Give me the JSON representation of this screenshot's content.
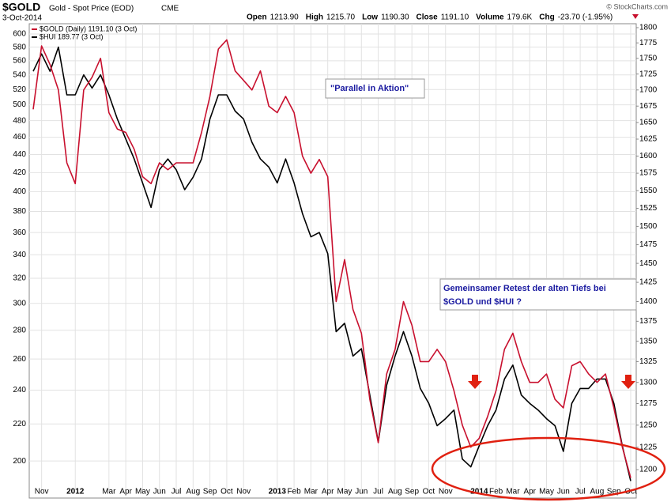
{
  "chart_data": {
    "type": "line",
    "symbol": "$GOLD",
    "title": "Gold - Spot Price (EOD)",
    "exchange": "CME",
    "date": "3-Oct-2014",
    "source": "© StockCharts.com",
    "stats": [
      {
        "label": "Open",
        "value": "1213.90"
      },
      {
        "label": "High",
        "value": "1215.70"
      },
      {
        "label": "Low",
        "value": "1190.30"
      },
      {
        "label": "Close",
        "value": "1191.10"
      },
      {
        "label": "Volume",
        "value": "179.6K"
      },
      {
        "label": "Chg",
        "value": "-23.70 (-1.95%)"
      }
    ],
    "annotations": [
      "\"Parallel in Aktion\"",
      "Gemeinsamer Retest der alten Tiefs bei",
      "$GOLD und $HUI ?"
    ],
    "categories": [
      null,
      "Nov",
      null,
      null,
      null,
      "2012",
      null,
      null,
      null,
      "Mar",
      null,
      "Apr",
      null,
      "May",
      null,
      "Jun",
      null,
      "Jul",
      null,
      "Aug",
      null,
      "Sep",
      null,
      "Oct",
      null,
      "Nov",
      null,
      null,
      null,
      "2013",
      null,
      "Feb",
      null,
      "Mar",
      null,
      "Apr",
      null,
      "May",
      null,
      "Jun",
      null,
      "Jul",
      null,
      "Aug",
      null,
      "Sep",
      null,
      "Oct",
      null,
      "Nov",
      null,
      null,
      null,
      "2014",
      null,
      "Feb",
      null,
      "Mar",
      null,
      "Apr",
      null,
      "May",
      null,
      "Jun",
      null,
      "Jul",
      null,
      "Aug",
      null,
      "Sep",
      null,
      "Oct"
    ],
    "series": [
      {
        "name": "$GOLD (Daily) 1191.10 (3 Oct)",
        "color": "#c8102e",
        "axis": "y2",
        "values": [
          1670,
          1770,
          1740,
          1700,
          1590,
          1560,
          1700,
          1720,
          1750,
          1665,
          1640,
          1635,
          1610,
          1570,
          1560,
          1590,
          1580,
          1590,
          1590,
          1590,
          1635,
          1690,
          1765,
          1780,
          1730,
          1715,
          1700,
          1730,
          1675,
          1665,
          1690,
          1665,
          1600,
          1575,
          1595,
          1570,
          1400,
          1455,
          1390,
          1360,
          1280,
          1230,
          1310,
          1340,
          1400,
          1370,
          1325,
          1325,
          1340,
          1325,
          1290,
          1250,
          1225,
          1235,
          1260,
          1290,
          1340,
          1360,
          1325,
          1300,
          1300,
          1310,
          1280,
          1270,
          1320,
          1325,
          1310,
          1300,
          1310,
          1270,
          1225,
          1191
        ]
      },
      {
        "name": "$HUI 189.77 (3 Oct)",
        "color": "#000000",
        "axis": "y",
        "values": [
          545,
          570,
          545,
          580,
          513,
          513,
          540,
          522,
          540,
          513,
          482,
          458,
          435,
          409,
          384,
          423,
          435,
          423,
          402,
          415,
          435,
          482,
          513,
          513,
          492,
          482,
          454,
          435,
          426,
          409,
          435,
          409,
          378,
          356,
          360,
          341,
          279,
          285,
          262,
          267,
          237,
          210,
          243,
          262,
          279,
          262,
          241,
          232,
          219,
          223,
          228,
          201,
          197,
          208,
          219,
          228,
          247,
          256,
          237,
          232,
          228,
          223,
          219,
          205,
          232,
          241,
          241,
          247,
          247,
          232,
          208,
          190
        ]
      }
    ],
    "ylim": [
      188.6,
      616
    ],
    "yticks": [
      200,
      220,
      240,
      260,
      280,
      300,
      320,
      340,
      360,
      380,
      400,
      420,
      440,
      460,
      480,
      500,
      520,
      540,
      560,
      580,
      600
    ],
    "y2lim": [
      1184.5,
      1806.5
    ],
    "y2ticks": [
      1200,
      1225,
      1250,
      1275,
      1300,
      1325,
      1350,
      1375,
      1400,
      1425,
      1450,
      1475,
      1500,
      1525,
      1550,
      1575,
      1600,
      1625,
      1650,
      1675,
      1700,
      1725,
      1750,
      1775,
      1800
    ],
    "log_scale": true,
    "grid": true
  }
}
